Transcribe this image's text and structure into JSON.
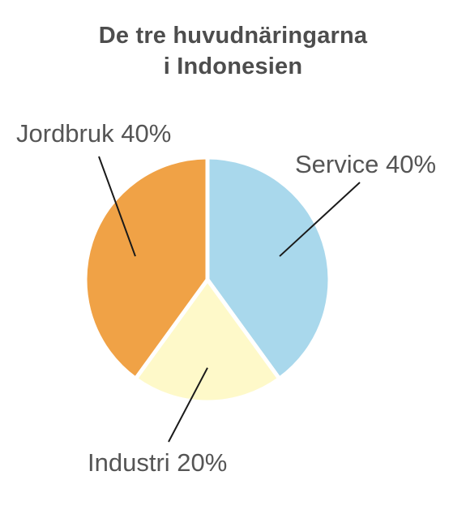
{
  "title_lines": [
    "De tre huvudnäringarna",
    "i Indonesien"
  ],
  "chart_data": {
    "type": "pie",
    "title": "De tre huvudnäringarna i Indonesien",
    "slices": [
      {
        "name": "Service",
        "value": 40,
        "label": "Service 40%",
        "color": "#a9d8ec"
      },
      {
        "name": "Industri",
        "value": 20,
        "label": "Industri 20%",
        "color": "#fef9c9"
      },
      {
        "name": "Jordbruk",
        "value": 40,
        "label": "Jordbruk 40%",
        "color": "#f0a246"
      }
    ],
    "start_angle": "12 o'clock",
    "direction": "clockwise",
    "separator_color": "#ffffff",
    "leader_line_color": "#1a1a1a"
  }
}
